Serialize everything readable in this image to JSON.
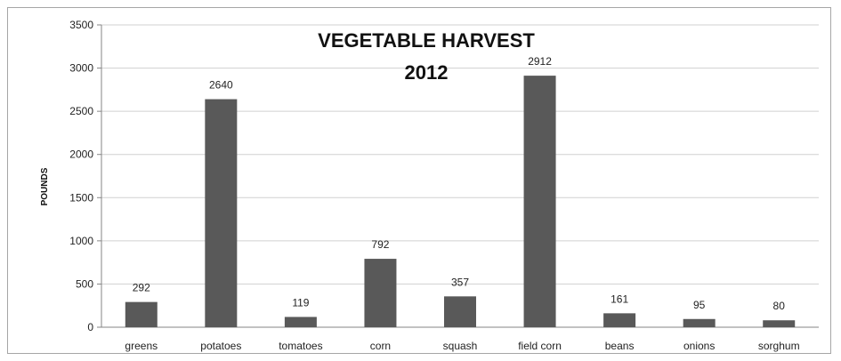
{
  "chart_data": {
    "type": "bar",
    "title_line1": "VEGETABLE HARVEST",
    "title_line2": "2012",
    "xlabel": "",
    "ylabel": "POUNDS",
    "ylim": [
      0,
      3500
    ],
    "yticks": [
      0,
      500,
      1000,
      1500,
      2000,
      2500,
      3000,
      3500
    ],
    "grid": true,
    "bar_color": "#595959",
    "gridline_color": "#d0d0d0",
    "categories": [
      "greens",
      "potatoes",
      "tomatoes",
      "corn",
      "squash",
      "field corn",
      "beans",
      "onions",
      "sorghum"
    ],
    "values": [
      292,
      2640,
      119,
      792,
      357,
      2912,
      161,
      95,
      80
    ],
    "data_labels": [
      "292",
      "2640",
      "119",
      "792",
      "357",
      "2912",
      "161",
      "95",
      "80"
    ]
  }
}
